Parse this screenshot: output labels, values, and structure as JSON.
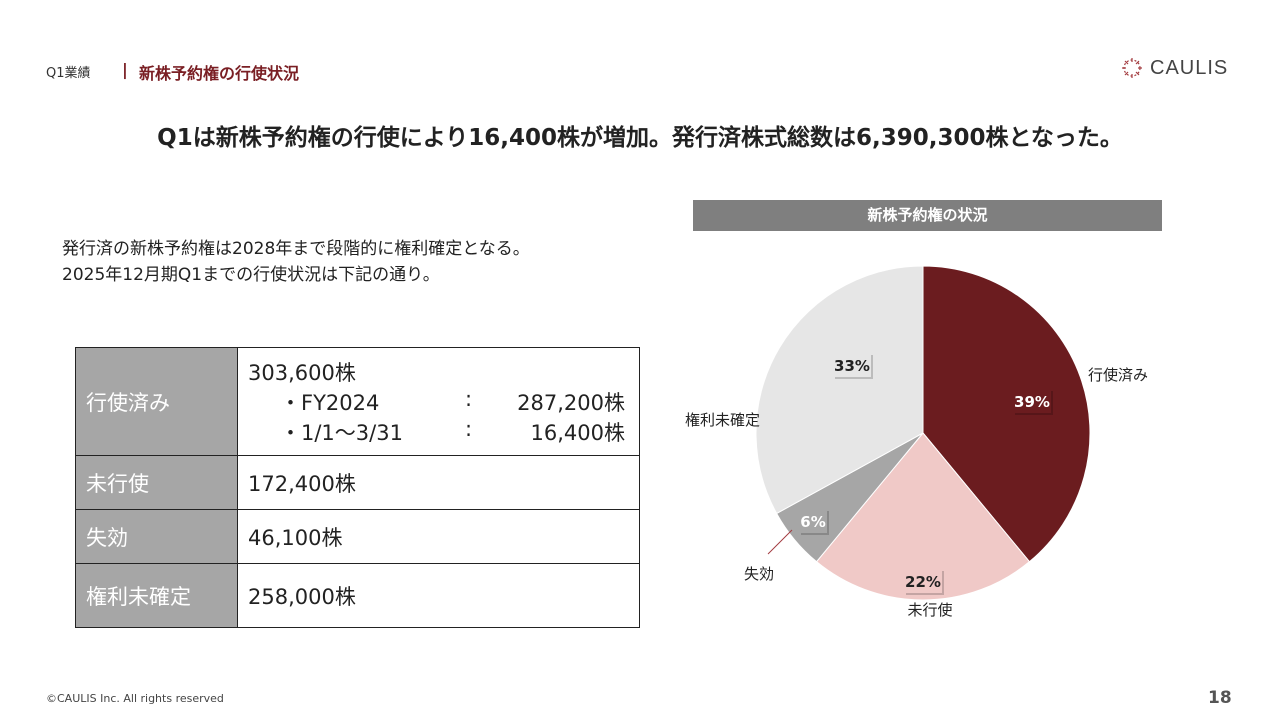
{
  "header": {
    "section_label": "Q1業績",
    "divider": "|",
    "section_title": "新株予約権の行使状況",
    "logo_text": "CAULIS"
  },
  "headline": "Q1は新株予約権の行使により16,400株が増加。発行済株式総数は6,390,300株となった。",
  "body_lines": [
    "発行済の新株予約権は2028年まで段階的に権利確定となる。",
    "2025年12月期Q1までの行使状況は下記の通り。"
  ],
  "table": {
    "rows": [
      {
        "label": "行使済み",
        "value": "303,600株",
        "sub": [
          {
            "label": "・FY2024",
            "colon": ":",
            "value": "287,200株"
          },
          {
            "label": "・1/1～3/31",
            "colon": ":",
            "value": "16,400株"
          }
        ]
      },
      {
        "label": "未行使",
        "value": "172,400株"
      },
      {
        "label": "失効",
        "value": "46,100株"
      },
      {
        "label": "権利未確定",
        "value": "258,000株"
      }
    ]
  },
  "chart_header": "新株予約権の状況",
  "chart_data": {
    "type": "pie",
    "title": "新株予約権の状況",
    "slices": [
      {
        "name": "行使済み",
        "value": 39,
        "label": "39%",
        "color": "#6b1c1f",
        "label_color": "#ffffff"
      },
      {
        "name": "未行使",
        "value": 22,
        "label": "22%",
        "color": "#f0c9c7",
        "label_color": "#222222"
      },
      {
        "name": "失効",
        "value": 6,
        "label": "6%",
        "color": "#a6a6a6",
        "label_color": "#ffffff"
      },
      {
        "name": "権利未確定",
        "value": 33,
        "label": "33%",
        "color": "#e6e6e6",
        "label_color": "#222222"
      }
    ]
  },
  "footer": {
    "copyright": "©CAULIS Inc. All rights reserved",
    "page_number": "18"
  },
  "colors": {
    "accent": "#7a1f24",
    "table_header": "#a6a6a6",
    "chart_header": "#7f7f7f"
  }
}
